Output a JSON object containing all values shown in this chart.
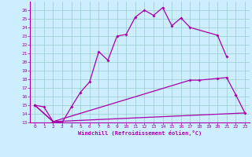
{
  "xlabel": "Windchill (Refroidissement éolien,°C)",
  "background_color": "#cceeff",
  "grid_color": "#99cccc",
  "line_color": "#aa00aa",
  "xlim": [
    -0.5,
    23.5
  ],
  "ylim": [
    13,
    27
  ],
  "xticks": [
    0,
    1,
    2,
    3,
    4,
    5,
    6,
    7,
    8,
    9,
    10,
    11,
    12,
    13,
    14,
    15,
    16,
    17,
    18,
    19,
    20,
    21,
    22,
    23
  ],
  "yticks": [
    13,
    14,
    15,
    16,
    17,
    18,
    19,
    20,
    21,
    22,
    23,
    24,
    25,
    26
  ],
  "c1x": [
    0,
    1,
    2,
    3,
    4,
    5,
    6,
    7,
    8,
    9,
    10,
    11,
    12,
    13,
    14,
    15,
    16,
    17,
    20,
    21
  ],
  "c1y": [
    15.0,
    14.8,
    13.1,
    13.0,
    14.8,
    16.5,
    17.7,
    21.2,
    20.2,
    23.0,
    23.2,
    25.2,
    26.0,
    25.4,
    26.3,
    24.2,
    25.1,
    24.0,
    23.1,
    20.6
  ],
  "c2x": [
    0,
    2,
    17,
    18,
    20,
    21,
    22,
    23
  ],
  "c2y": [
    15.0,
    13.1,
    17.9,
    17.9,
    18.1,
    18.2,
    16.2,
    14.1
  ],
  "c3x": [
    0,
    2,
    23
  ],
  "c3y": [
    15.0,
    13.1,
    14.1
  ]
}
